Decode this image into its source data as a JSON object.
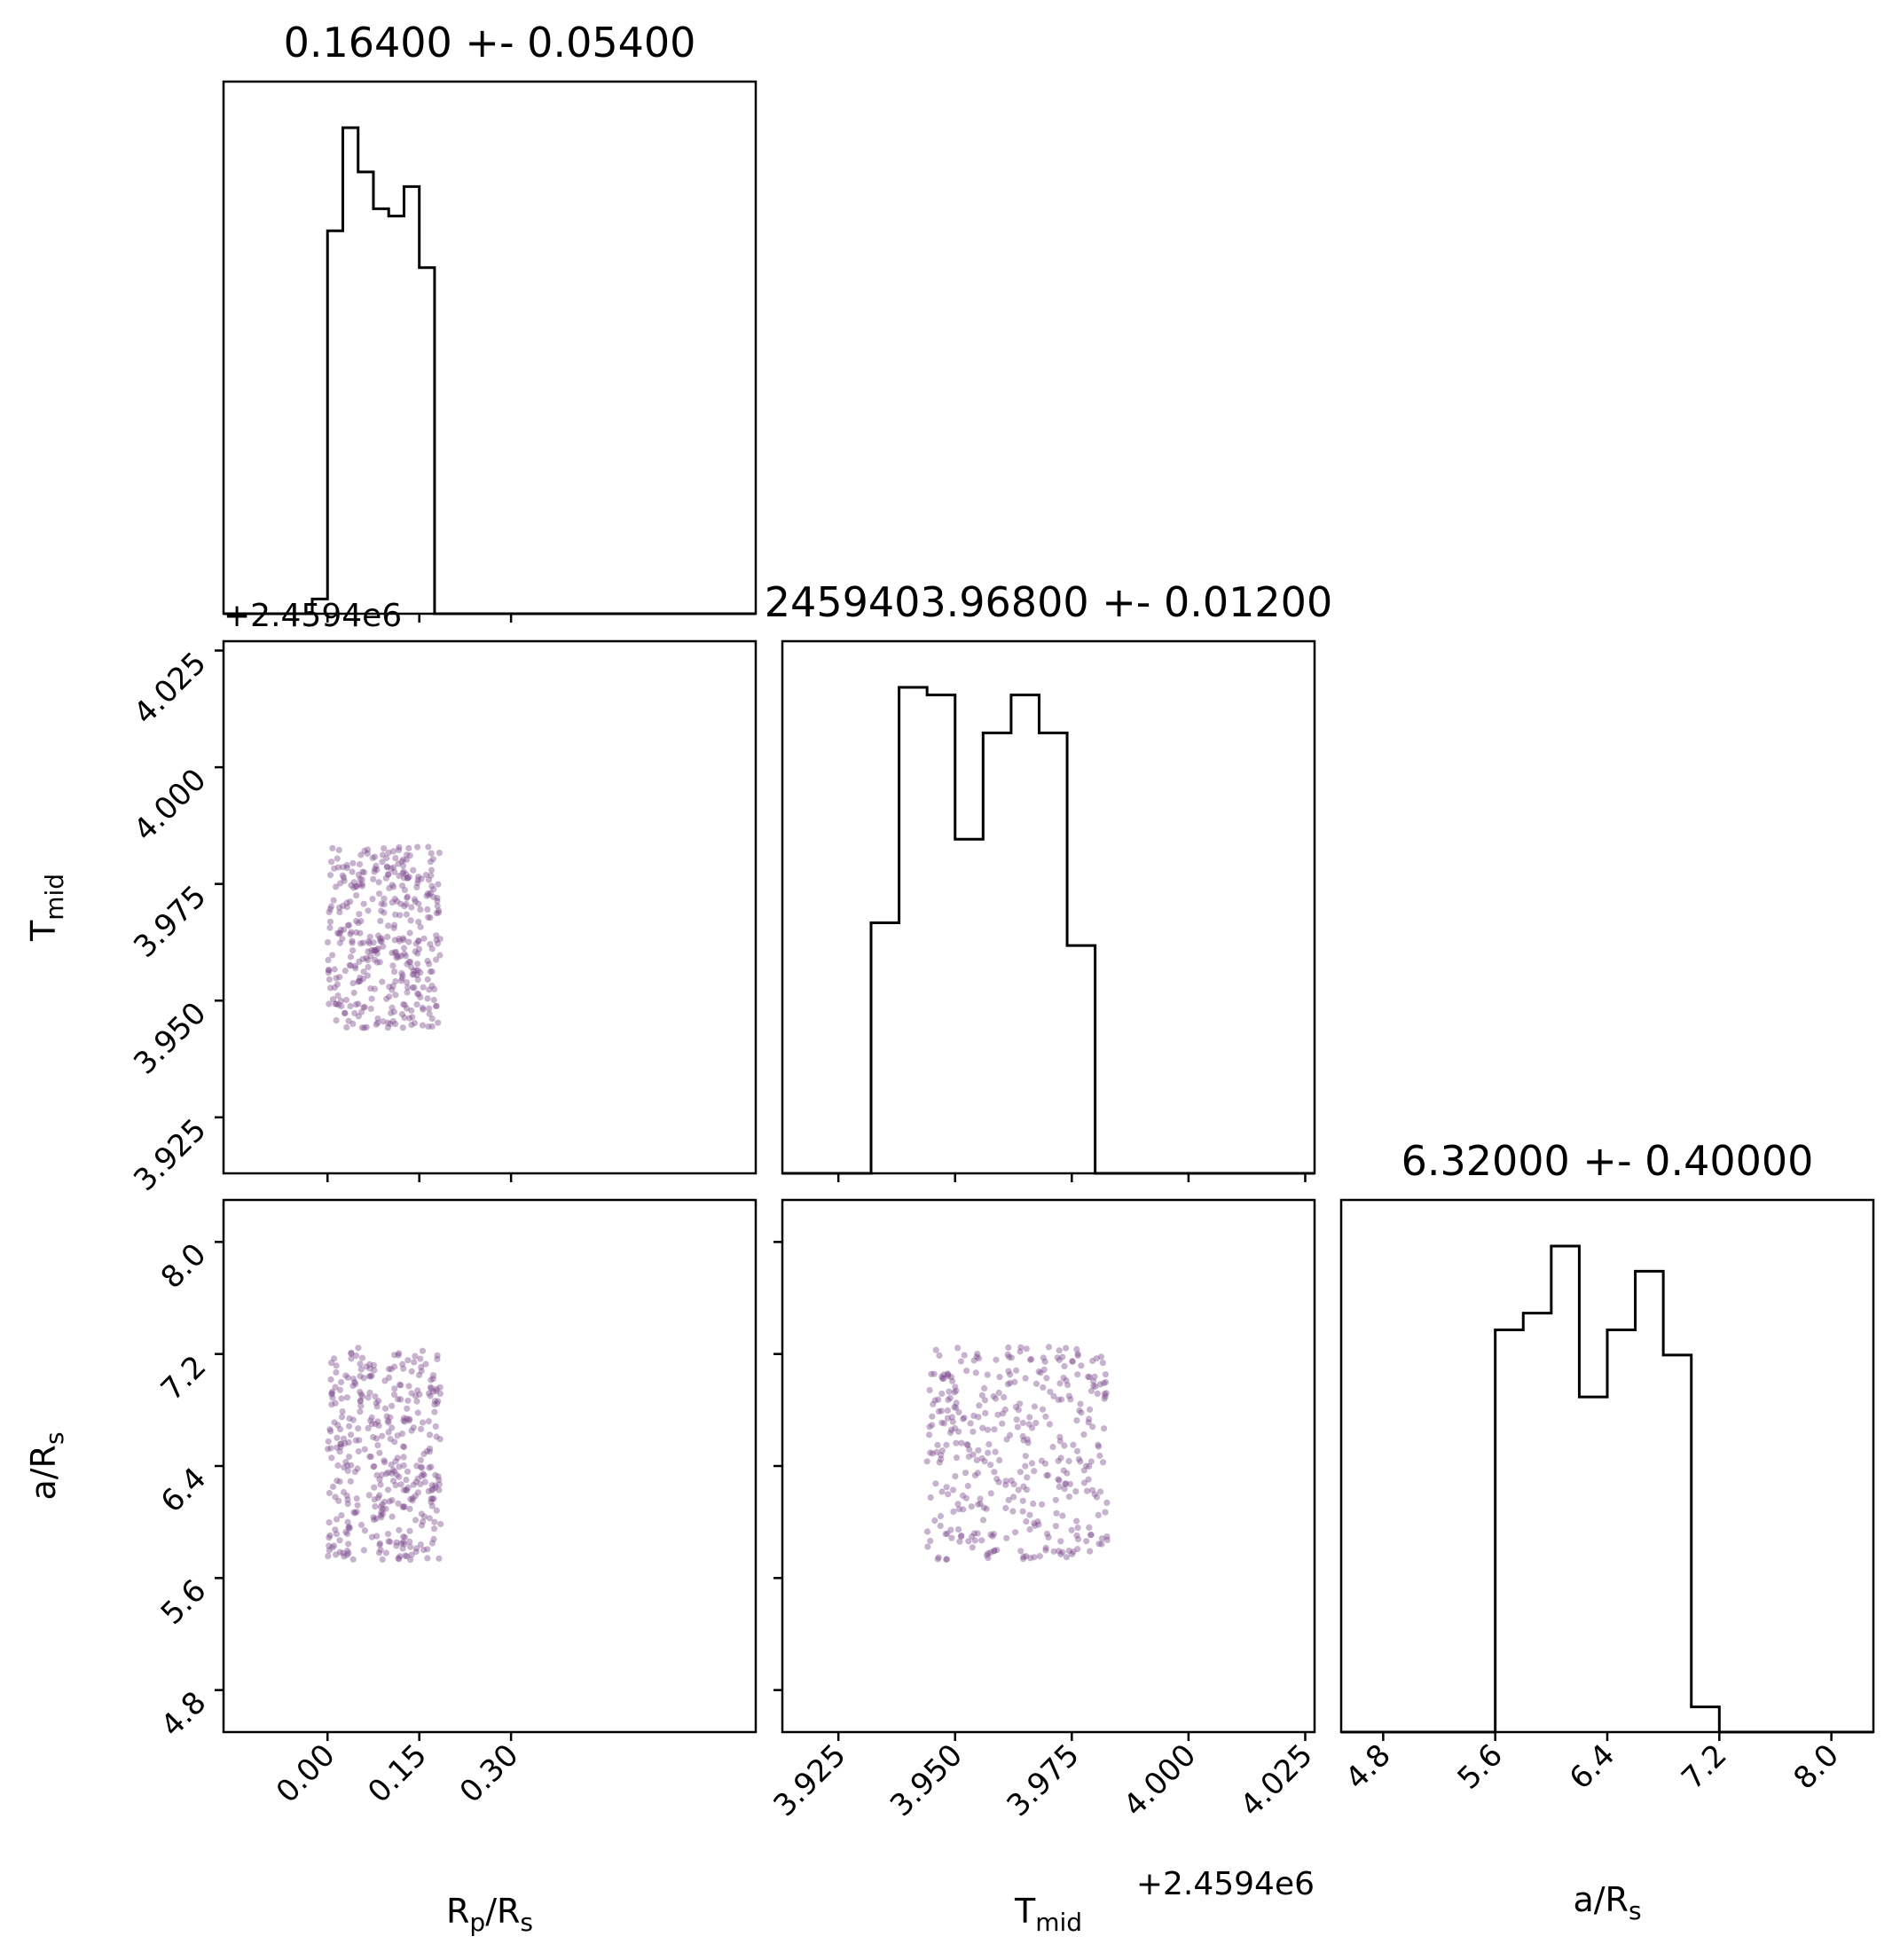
{
  "chart_data": {
    "type": "corner",
    "title": "",
    "parameters": [
      {
        "key": "rp",
        "label_main": "R",
        "label_sub1": "p",
        "label_mid": "/R",
        "label_sub2": "s",
        "range": [
          -0.17,
          0.7
        ],
        "ticks": [
          0.0,
          0.15,
          0.3
        ],
        "tick_labels": [
          "0.00",
          "0.15",
          "0.30"
        ],
        "title": "0.16400 +- 0.05400",
        "hist_edges": [
          -0.1,
          -0.075,
          -0.05,
          -0.025,
          0.0,
          0.025,
          0.05,
          0.075,
          0.1,
          0.125,
          0.15,
          0.175,
          0.2,
          0.225,
          0.25
        ],
        "hist_counts": [
          0,
          0,
          0,
          2,
          52,
          66,
          60,
          55,
          54,
          58,
          47,
          0,
          0,
          0
        ]
      },
      {
        "key": "tmid",
        "label_main": "T",
        "label_sub1": "mid",
        "label_mid": "",
        "label_sub2": "",
        "range": [
          3.913,
          4.027
        ],
        "ticks": [
          3.925,
          3.95,
          3.975,
          4.0,
          4.025
        ],
        "tick_labels": [
          "3.925",
          "3.950",
          "3.975",
          "4.000",
          "4.025"
        ],
        "offset_label": "+2.4594e6",
        "title": "2459403.96800 +- 0.01200",
        "hist_edges": [
          3.932,
          3.938,
          3.944,
          3.95,
          3.956,
          3.962,
          3.968,
          3.974,
          3.98,
          3.986
        ],
        "hist_counts": [
          33,
          64,
          63,
          44,
          58,
          63,
          58,
          30,
          0
        ]
      },
      {
        "key": "ars",
        "label_main": "a/R",
        "label_sub1": "",
        "label_mid": "",
        "label_sub2": "s",
        "range": [
          4.5,
          8.3
        ],
        "ticks": [
          4.8,
          5.6,
          6.4,
          7.2,
          8.0
        ],
        "tick_labels": [
          "4.8",
          "5.6",
          "6.4",
          "7.2",
          "8.0"
        ],
        "title": "6.32000 +- 0.40000",
        "hist_edges": [
          5.6,
          5.8,
          6.0,
          6.2,
          6.4,
          6.6,
          6.8,
          7.0,
          7.2
        ],
        "hist_counts": [
          48,
          50,
          58,
          40,
          48,
          55,
          45,
          3
        ]
      }
    ],
    "scatter": [
      {
        "row": 1,
        "col": 0,
        "x_range": [
          0.0,
          0.185
        ],
        "y_range": [
          3.944,
          3.983
        ],
        "n": 380
      },
      {
        "row": 2,
        "col": 0,
        "x_range": [
          0.0,
          0.185
        ],
        "y_range": [
          5.73,
          7.25
        ],
        "n": 380
      },
      {
        "row": 2,
        "col": 1,
        "x_range": [
          3.944,
          3.983
        ],
        "y_range": [
          5.73,
          7.25
        ],
        "n": 380
      }
    ],
    "point_color": "#7b4a8c",
    "line_color": "#000000"
  }
}
